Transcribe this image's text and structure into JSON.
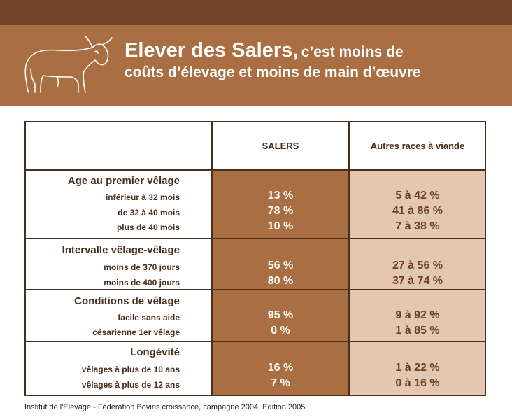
{
  "header": {
    "title_big": "Elever des Salers,",
    "title_small": "c’est moins de",
    "title_line2": "coûts d’élevage et moins de main d’œuvre"
  },
  "table": {
    "col_salers": "SALERS",
    "col_autres": "Autres races à viande",
    "sections": [
      {
        "title": "Age au premier vêlage",
        "rows": [
          {
            "label": "inférieur à 32 mois",
            "salers": "13 %",
            "autres": "5 à 42 %"
          },
          {
            "label": "de 32 à 40 mois",
            "salers": "78 %",
            "autres": "41 à 86 %"
          },
          {
            "label": "plus de 40 mois",
            "salers": "10 %",
            "autres": "7 à 38 %"
          }
        ]
      },
      {
        "title": "Intervalle vêlage-vêlage",
        "rows": [
          {
            "label": "moins de 370 jours",
            "salers": "56 %",
            "autres": "27 à 56 %"
          },
          {
            "label": "moins de 400 jours",
            "salers": "80 %",
            "autres": "37 à 74 %"
          }
        ]
      },
      {
        "title": "Conditions de vêlage",
        "rows": [
          {
            "label": "facile sans aide",
            "salers": "95 %",
            "autres": "9 à 92 %"
          },
          {
            "label": "césarienne 1er vêlage",
            "salers": "0 %",
            "autres": "1 à 85 %"
          }
        ]
      },
      {
        "title": "Longévité",
        "rows": [
          {
            "label": "vêlages à plus de 10 ans",
            "salers": "16 %",
            "autres": "1 à 22 %"
          },
          {
            "label": "vêlages à plus de 12 ans",
            "salers": "7 %",
            "autres": "0 à 16 %"
          }
        ]
      }
    ]
  },
  "colors": {
    "banner": "#a96e41",
    "topbar": "#704428",
    "salers_col": "#a96e41",
    "autres_col": "#e3c7b3",
    "text": "#4a2f1c"
  },
  "icons": {
    "logo": "cow-icon"
  },
  "footer": "Institut de l'Elevage - Fédération Bovins croissance, campagne 2004, Edition 2005"
}
